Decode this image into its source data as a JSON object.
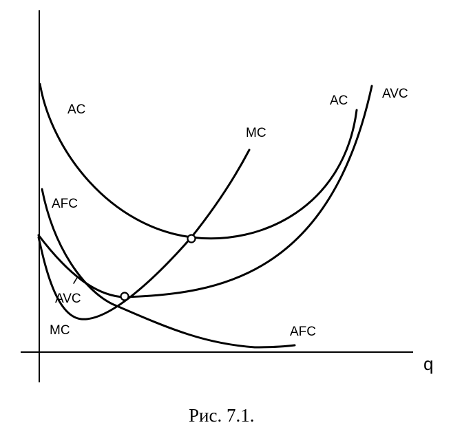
{
  "diagram": {
    "x_axis_label": "q",
    "caption": "Рис. 7.1.",
    "labels": {
      "ac_left": "AC",
      "ac_right": "AC",
      "avc_right": "AVC",
      "avc_left": "AVC",
      "mc_top": "MC",
      "mc_left": "MC",
      "afc_left": "AFC",
      "afc_right": "AFC"
    },
    "curves": [
      "AC",
      "AVC",
      "MC",
      "AFC"
    ],
    "marked_points": [
      "MC ∩ AC minimum",
      "MC ∩ AVC minimum"
    ]
  }
}
